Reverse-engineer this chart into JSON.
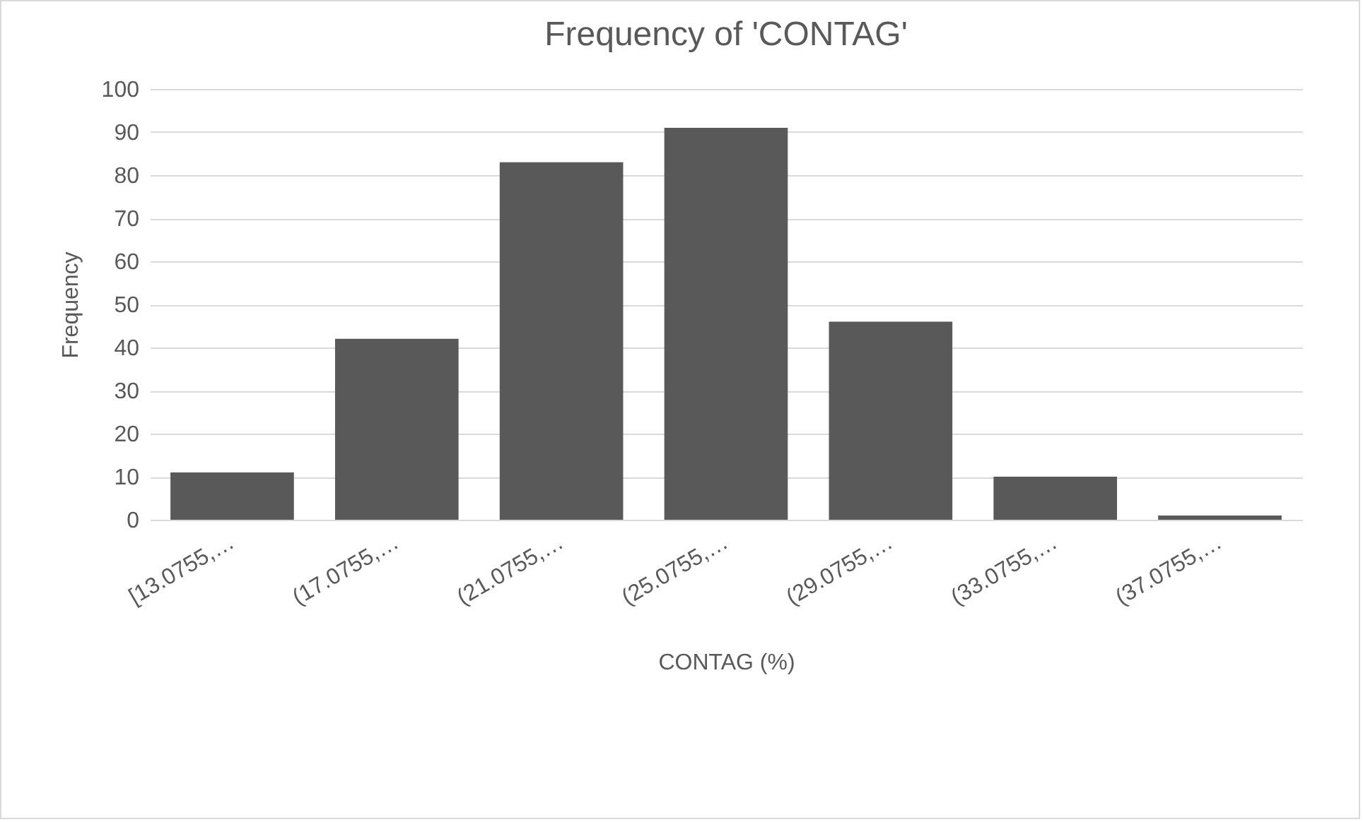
{
  "chart_data": {
    "type": "bar",
    "title": "Frequency of 'CONTAG'",
    "xlabel": "CONTAG (%)",
    "ylabel": "Frequency",
    "categories": [
      "[13.0755,…",
      "(17.0755,…",
      "(21.0755,…",
      "(25.0755,…",
      "(29.0755,…",
      "(33.0755,…",
      "(37.0755,…"
    ],
    "values": [
      11,
      42,
      83,
      91,
      46,
      10,
      1
    ],
    "color": "#595959",
    "ylim": [
      0,
      100
    ],
    "yticks": [
      0,
      10,
      20,
      30,
      40,
      50,
      60,
      70,
      80,
      90,
      100
    ],
    "grid": "y"
  }
}
